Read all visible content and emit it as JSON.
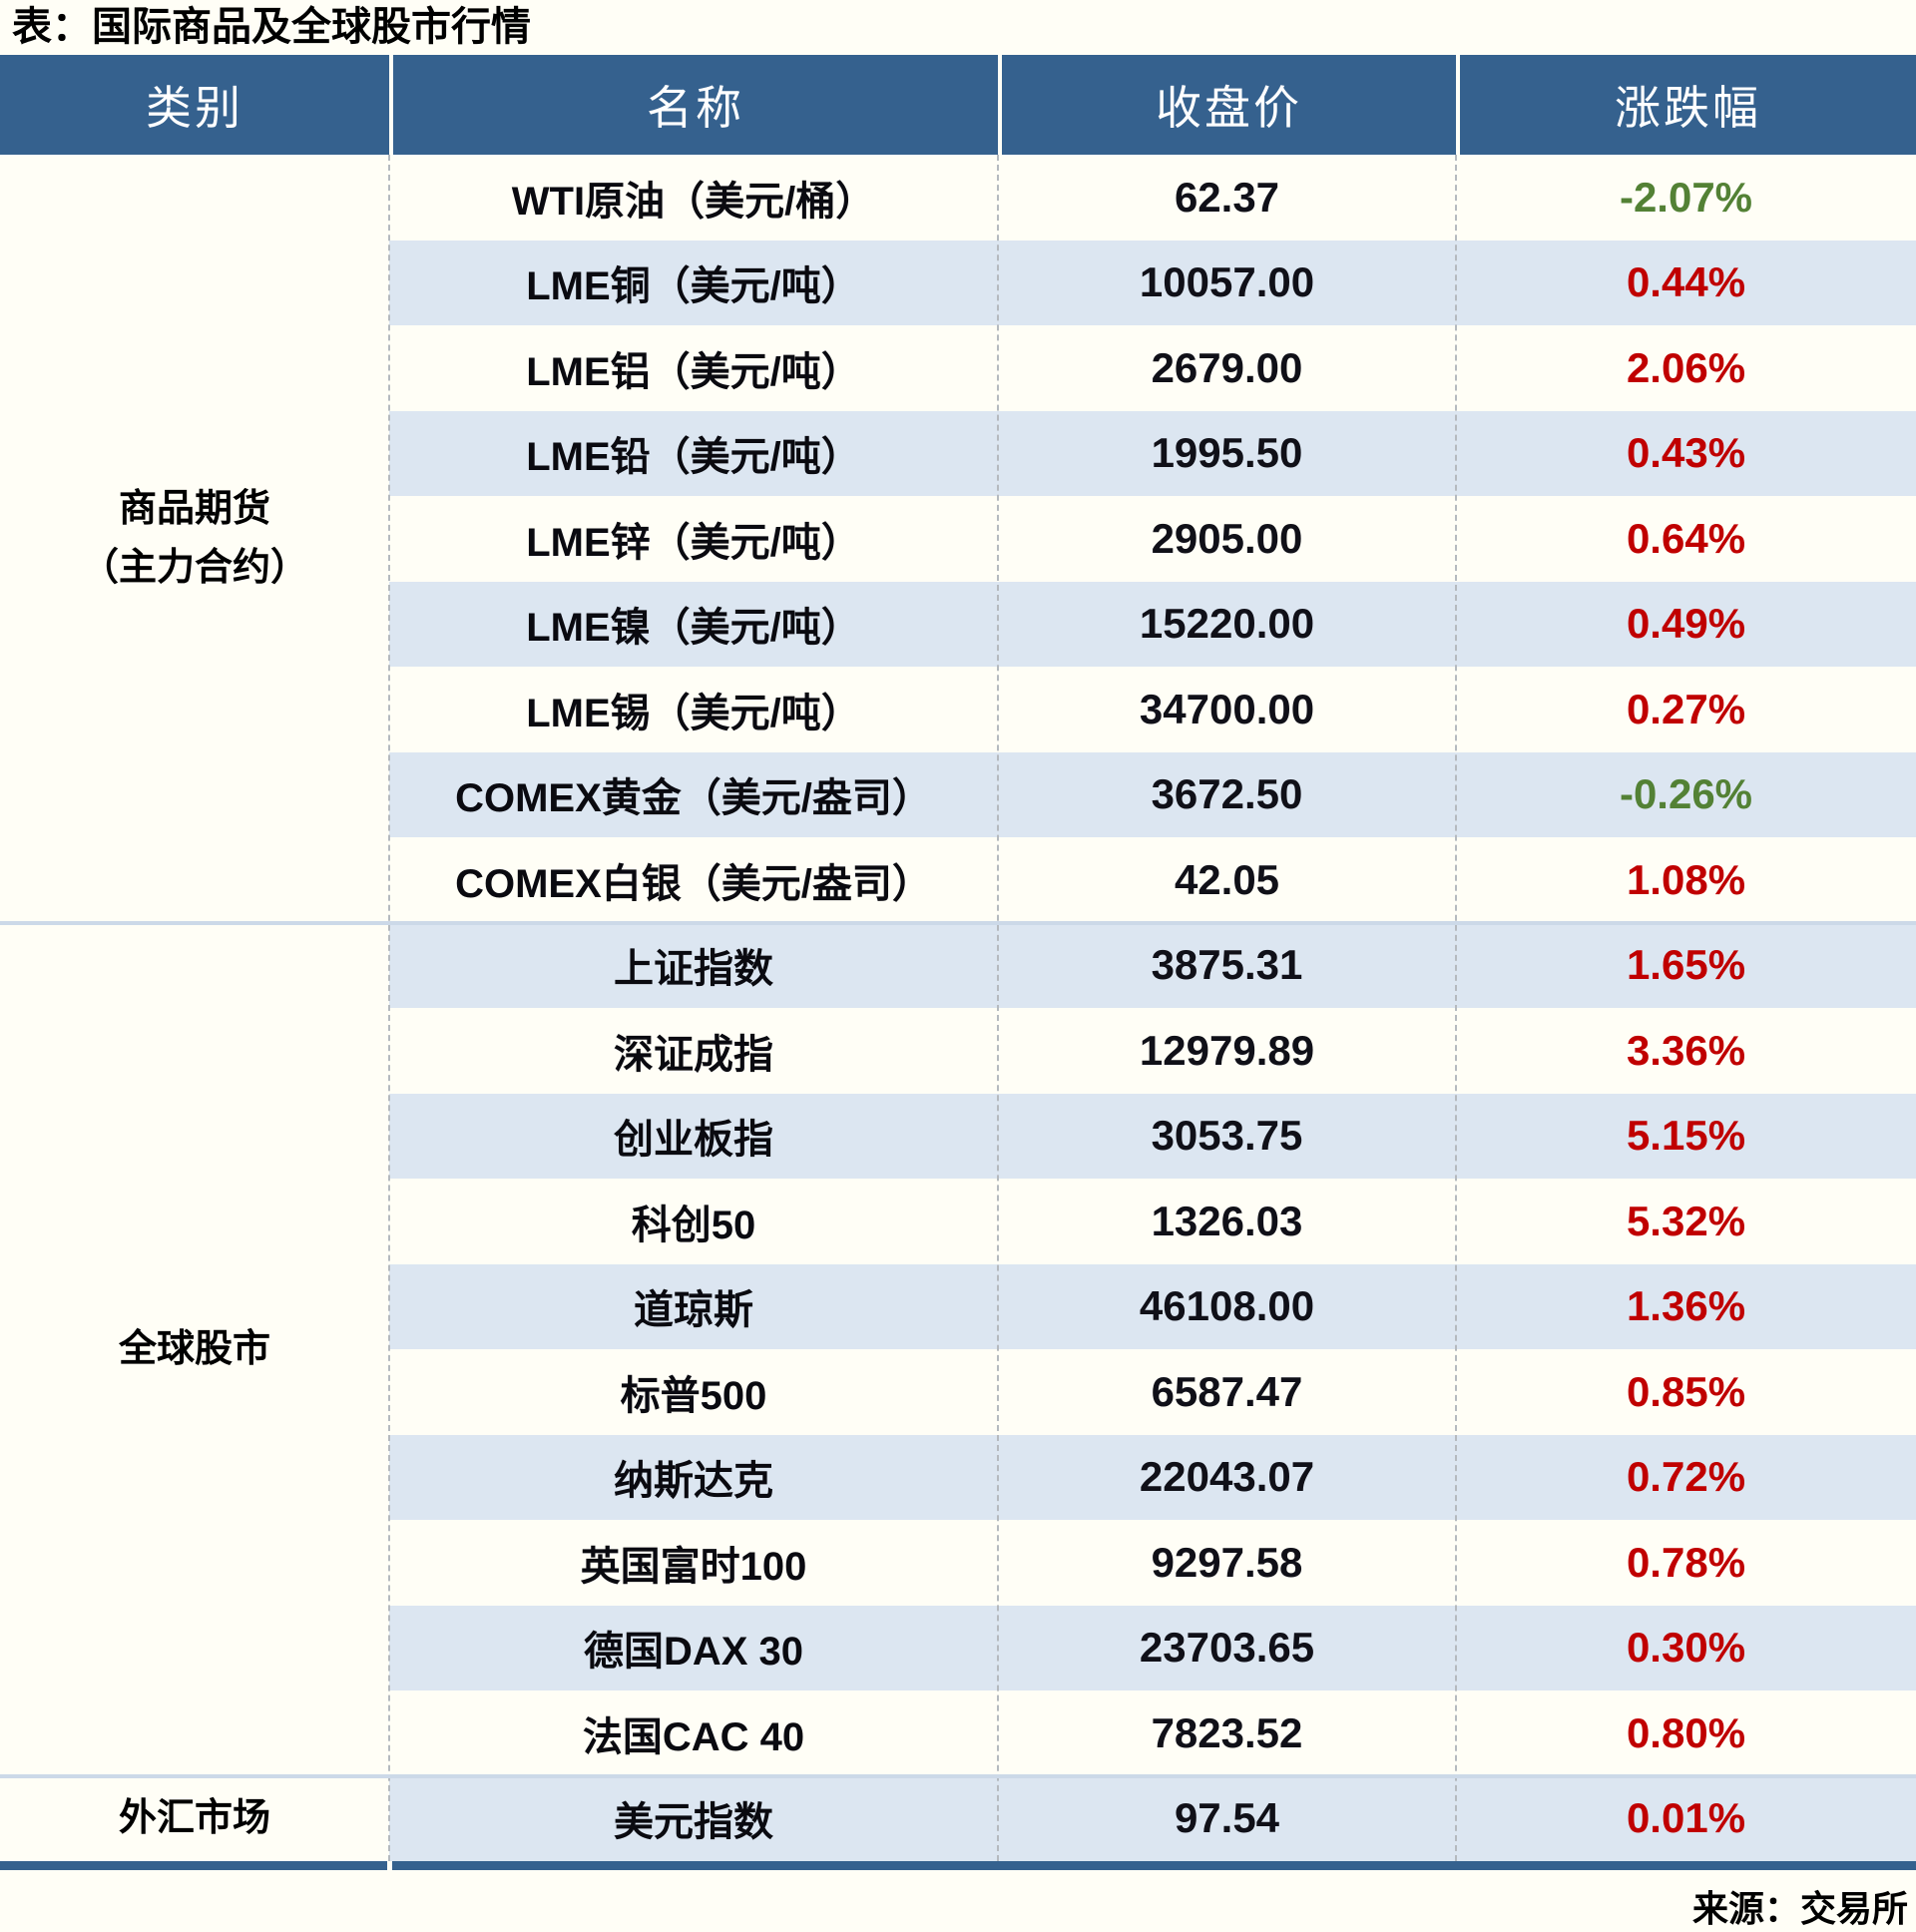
{
  "title": "表：国际商品及全球股市行情",
  "source_note": "来源：交易所",
  "columns": [
    "类别",
    "名称",
    "收盘价",
    "涨跌幅"
  ],
  "colors": {
    "page_bg": "#fffef6",
    "header_bg": "#35618e",
    "stripe": "#dce6f1",
    "group_border": "#ccd9e8",
    "up_red": "#c00000",
    "down_green": "#538135"
  },
  "groups": [
    {
      "category": "商品期货\n（主力合约）",
      "rows": [
        {
          "name": "WTI原油（美元/桶）",
          "close": "62.37",
          "change": "-2.07%"
        },
        {
          "name": "LME铜（美元/吨）",
          "close": "10057.00",
          "change": "0.44%"
        },
        {
          "name": "LME铝（美元/吨）",
          "close": "2679.00",
          "change": "2.06%"
        },
        {
          "name": "LME铅（美元/吨）",
          "close": "1995.50",
          "change": "0.43%"
        },
        {
          "name": "LME锌（美元/吨）",
          "close": "2905.00",
          "change": "0.64%"
        },
        {
          "name": "LME镍（美元/吨）",
          "close": "15220.00",
          "change": "0.49%"
        },
        {
          "name": "LME锡（美元/吨）",
          "close": "34700.00",
          "change": "0.27%"
        },
        {
          "name": "COMEX黄金（美元/盎司）",
          "close": "3672.50",
          "change": "-0.26%"
        },
        {
          "name": "COMEX白银（美元/盎司）",
          "close": "42.05",
          "change": "1.08%"
        }
      ]
    },
    {
      "category": "全球股市",
      "rows": [
        {
          "name": "上证指数",
          "close": "3875.31",
          "change": "1.65%"
        },
        {
          "name": "深证成指",
          "close": "12979.89",
          "change": "3.36%"
        },
        {
          "name": "创业板指",
          "close": "3053.75",
          "change": "5.15%"
        },
        {
          "name": "科创50",
          "close": "1326.03",
          "change": "5.32%"
        },
        {
          "name": "道琼斯",
          "close": "46108.00",
          "change": "1.36%"
        },
        {
          "name": "标普500",
          "close": "6587.47",
          "change": "0.85%"
        },
        {
          "name": "纳斯达克",
          "close": "22043.07",
          "change": "0.72%"
        },
        {
          "name": "英国富时100",
          "close": "9297.58",
          "change": "0.78%"
        },
        {
          "name": "德国DAX 30",
          "close": "23703.65",
          "change": "0.30%"
        },
        {
          "name": "法国CAC 40",
          "close": "7823.52",
          "change": "0.80%"
        }
      ]
    },
    {
      "category": "外汇市场",
      "rows": [
        {
          "name": "美元指数",
          "close": "97.54",
          "change": "0.01%"
        }
      ]
    }
  ]
}
